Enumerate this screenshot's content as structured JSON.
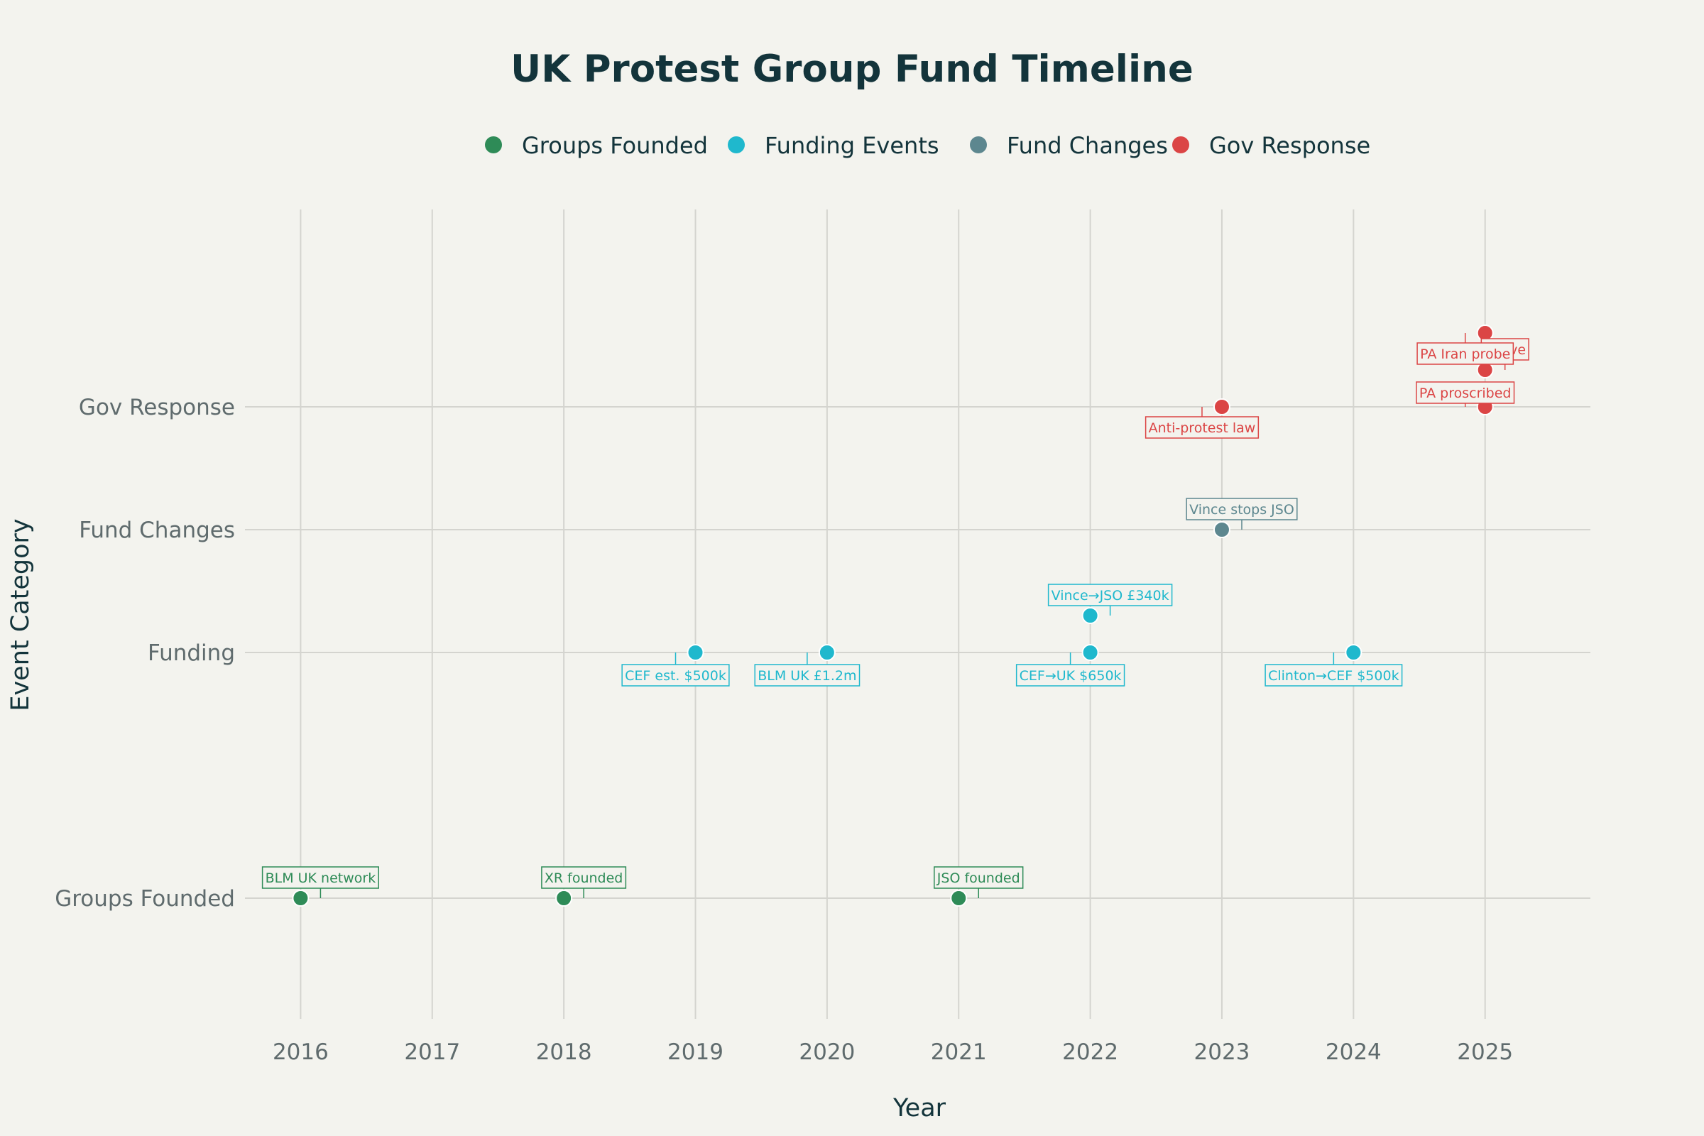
{
  "chart_data": {
    "type": "scatter",
    "title": "UK Protest Group Fund Timeline",
    "xlabel": "Year",
    "ylabel": "Event Category",
    "xlim": [
      2015.55,
      2025.8
    ],
    "x_ticks": [
      2016,
      2017,
      2018,
      2019,
      2020,
      2021,
      2022,
      2023,
      2024,
      2025
    ],
    "categories": [
      "Groups Founded",
      "Funding",
      "Fund Changes",
      "Gov Response"
    ],
    "grid": true,
    "legend_position": "top",
    "series": [
      {
        "name": "Groups Founded",
        "color": "#2e8b57",
        "points": [
          {
            "x": 2016,
            "category": "Groups Founded",
            "label": "BLM UK network"
          },
          {
            "x": 2018,
            "category": "Groups Founded",
            "label": "XR founded"
          },
          {
            "x": 2021,
            "category": "Groups Founded",
            "label": "JSO founded"
          }
        ]
      },
      {
        "name": "Funding Events",
        "color": "#1fb8cd",
        "points": [
          {
            "x": 2019,
            "category": "Funding",
            "label": "CEF est. $500k"
          },
          {
            "x": 2020,
            "category": "Funding",
            "label": "BLM UK £1.2m"
          },
          {
            "x": 2022,
            "category": "Funding",
            "label": "CEF→UK $650k"
          },
          {
            "x": 2022,
            "category": "Funding",
            "label": "Vince→JSO £340k"
          },
          {
            "x": 2024,
            "category": "Funding",
            "label": "Clinton→CEF $500k"
          }
        ]
      },
      {
        "name": "Fund Changes",
        "color": "#5d878f",
        "points": [
          {
            "x": 2023,
            "category": "Fund Changes",
            "label": "Vince stops JSO"
          }
        ]
      },
      {
        "name": "Gov Response",
        "color": "#db4545",
        "points": [
          {
            "x": 2023,
            "category": "Gov Response",
            "label": "Anti-protest law"
          },
          {
            "x": 2025,
            "category": "Gov Response",
            "label": "PA proscribed"
          },
          {
            "x": 2025,
            "category": "Gov Response",
            "label": "Active"
          },
          {
            "x": 2025,
            "category": "Gov Response",
            "label": "PA Iran probe"
          }
        ]
      }
    ]
  }
}
